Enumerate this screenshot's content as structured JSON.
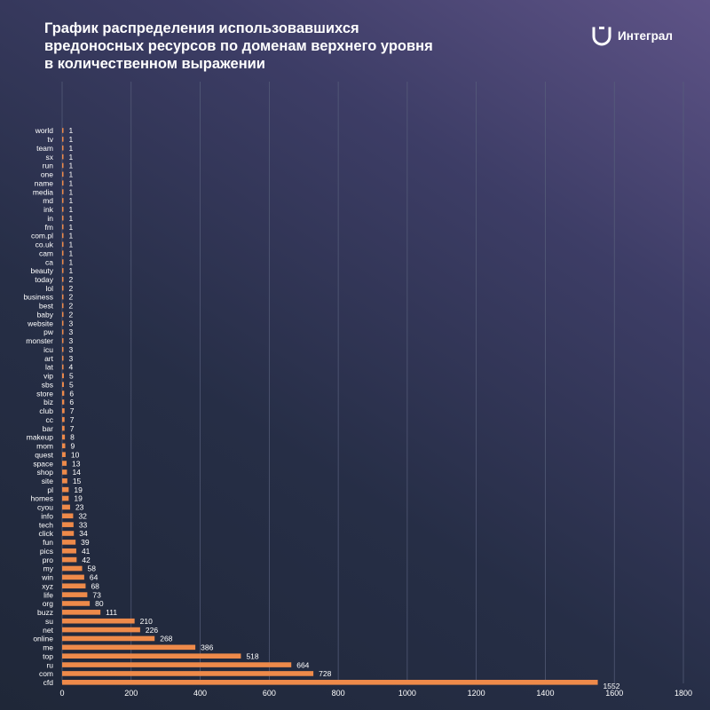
{
  "title_lines": [
    "График распределения использовавшихся",
    "вредоносных ресурсов по доменам верхнего уровня",
    "в количественном выражении"
  ],
  "logo": {
    "text": "Интеграл",
    "icon": "integral-logo-icon"
  },
  "colors": {
    "bar": "#ee8a4a",
    "label": "#ffffff",
    "grid": "#58607c"
  },
  "chart_data": {
    "type": "bar",
    "orientation": "horizontal",
    "title": "График распределения использовавшихся вредоносных ресурсов по доменам верхнего уровня в количественном выражении",
    "xlim": [
      0,
      1800
    ],
    "xticks": [
      0,
      200,
      400,
      600,
      800,
      1000,
      1200,
      1400,
      1600,
      1800
    ],
    "grid": "vertical",
    "categories": [
      "world",
      "tv",
      "team",
      "sx",
      "run",
      "one",
      "name",
      "media",
      "md",
      "ink",
      "in",
      "fm",
      "com.pl",
      "co.uk",
      "cam",
      "ca",
      "beauty",
      "today",
      "lol",
      "business",
      "best",
      "baby",
      "website",
      "pw",
      "monster",
      "icu",
      "art",
      "lat",
      "vip",
      "sbs",
      "store",
      "biz",
      "club",
      "cc",
      "bar",
      "makeup",
      "mom",
      "quest",
      "space",
      "shop",
      "site",
      "pl",
      "homes",
      "cyou",
      "info",
      "tech",
      "click",
      "fun",
      "pics",
      "pro",
      "my",
      "win",
      "xyz",
      "life",
      "org",
      "buzz",
      "su",
      "net",
      "online",
      "me",
      "top",
      "ru",
      "com",
      "cfd"
    ],
    "values": [
      1,
      1,
      1,
      1,
      1,
      1,
      1,
      1,
      1,
      1,
      1,
      1,
      1,
      1,
      1,
      1,
      1,
      2,
      2,
      2,
      2,
      2,
      3,
      3,
      3,
      3,
      3,
      4,
      5,
      5,
      6,
      6,
      7,
      7,
      7,
      8,
      9,
      10,
      13,
      14,
      15,
      19,
      19,
      23,
      32,
      33,
      34,
      39,
      41,
      42,
      58,
      64,
      68,
      73,
      80,
      111,
      210,
      226,
      268,
      386,
      518,
      664,
      728,
      1552
    ]
  }
}
